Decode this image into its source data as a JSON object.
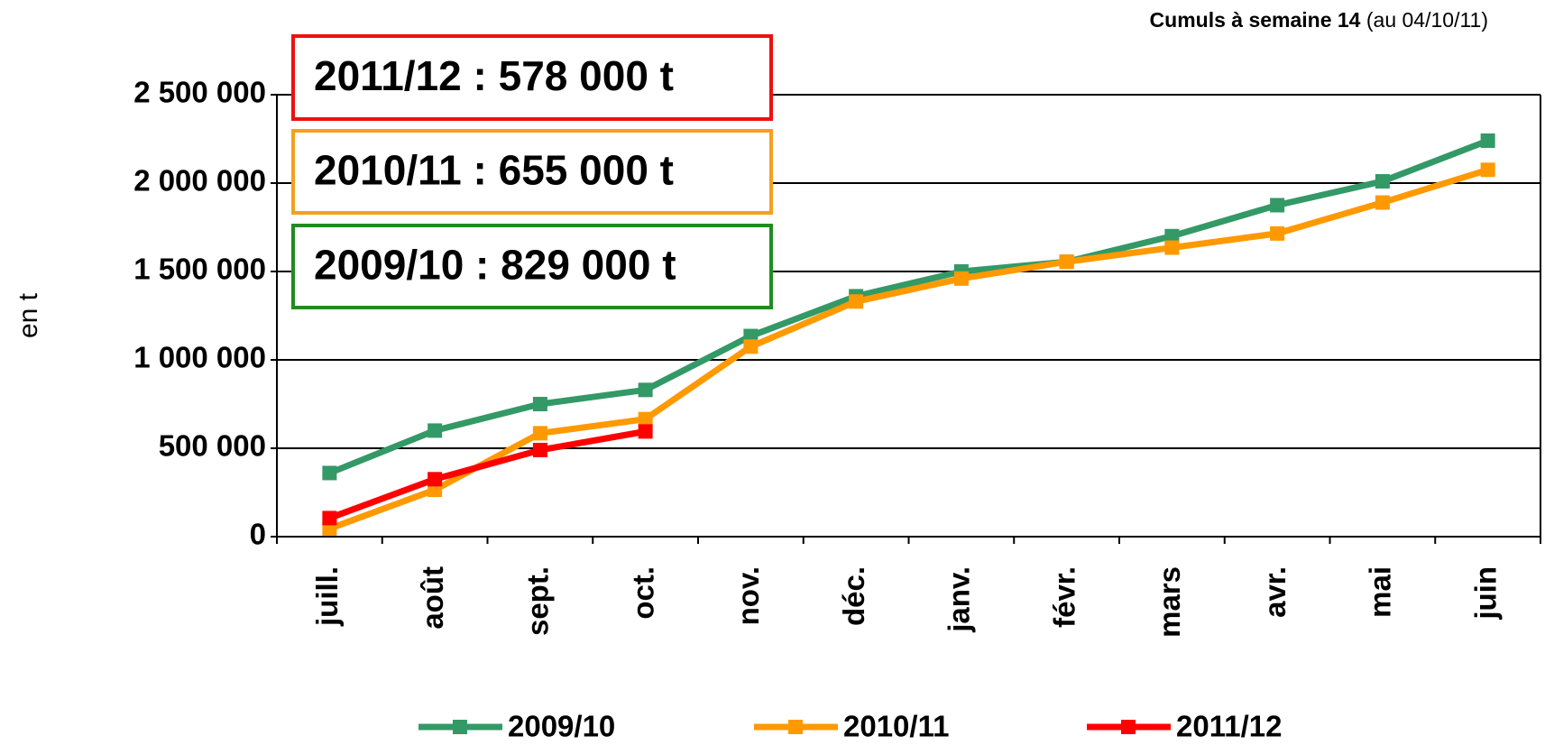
{
  "chart_data": {
    "type": "line",
    "subtitle": {
      "bold": "Cumuls à semaine 14",
      "normal": "(au 04/10/11)"
    },
    "y_label": "en t",
    "categories": [
      "juill.",
      "août",
      "sept.",
      "oct.",
      "nov.",
      "déc.",
      "janv.",
      "févr.",
      "mars",
      "avr.",
      "mai",
      "juin"
    ],
    "series": [
      {
        "name": "2009/10",
        "color": "#339966",
        "values": [
          360000,
          600000,
          750000,
          830000,
          1135000,
          1360000,
          1500000,
          1555000,
          1700000,
          1875000,
          2010000,
          2240000
        ]
      },
      {
        "name": "2010/11",
        "color": "#ff9900",
        "values": [
          45000,
          265000,
          585000,
          665000,
          1075000,
          1330000,
          1460000,
          1555000,
          1635000,
          1715000,
          1890000,
          2075000
        ]
      },
      {
        "name": "2011/12",
        "color": "#ff0000",
        "values": [
          105000,
          325000,
          490000,
          595000,
          null,
          null,
          null,
          null,
          null,
          null,
          null,
          null
        ]
      }
    ],
    "annotations": [
      {
        "text": "2011/12 : 578 000 t",
        "color": "#ee1111"
      },
      {
        "text": "2010/11 : 655 000 t",
        "color": "#f5a020"
      },
      {
        "text": "2009/10 : 829 000 t",
        "color": "#228b22"
      }
    ],
    "ylim": [
      0,
      2500000
    ],
    "yticks": [
      {
        "value": 0,
        "label": "0"
      },
      {
        "value": 500000,
        "label": "500 000"
      },
      {
        "value": 1000000,
        "label": "1 000 000"
      },
      {
        "value": 1500000,
        "label": "1 500 000"
      },
      {
        "value": 2000000,
        "label": "2 000 000"
      },
      {
        "value": 2500000,
        "label": "2 500 000"
      }
    ],
    "grid": true,
    "legend": "bottom"
  }
}
